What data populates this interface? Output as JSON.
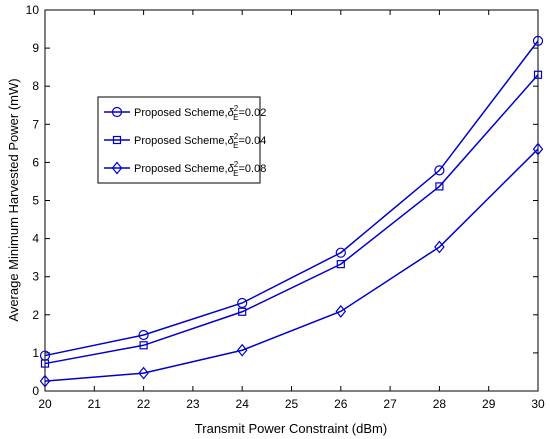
{
  "chart_data": {
    "type": "line",
    "xlabel": "Transmit Power Constraint (dBm)",
    "ylabel": "Average Minimum Harvested Power (mW)",
    "xlim": [
      20,
      30
    ],
    "ylim": [
      0,
      10
    ],
    "xticks": [
      "20",
      "21",
      "22",
      "23",
      "24",
      "25",
      "26",
      "27",
      "28",
      "29",
      "30"
    ],
    "yticks": [
      "0",
      "1",
      "2",
      "3",
      "4",
      "5",
      "6",
      "7",
      "8",
      "9",
      "10"
    ],
    "grid": false,
    "legend_position": "upper-left",
    "line_color": "#0000cc",
    "x": [
      20,
      22,
      24,
      26,
      28,
      30
    ],
    "series": [
      {
        "name_main": "Proposed Scheme,",
        "name_var": "δ",
        "name_sup": "2",
        "name_sub": "E",
        "name_tail": "=0.02",
        "marker": "circle",
        "values": [
          0.93,
          1.47,
          2.31,
          3.63,
          5.79,
          9.19
        ]
      },
      {
        "name_main": "Proposed Scheme,",
        "name_var": "δ",
        "name_sup": "2",
        "name_sub": "E",
        "name_tail": "=0.04",
        "marker": "square",
        "values": [
          0.72,
          1.2,
          2.08,
          3.33,
          5.37,
          8.3
        ]
      },
      {
        "name_main": "Proposed Scheme,",
        "name_var": "δ",
        "name_sup": "2",
        "name_sub": "E",
        "name_tail": "=0.08",
        "marker": "diamond",
        "values": [
          0.26,
          0.47,
          1.07,
          2.09,
          3.78,
          6.35
        ]
      }
    ]
  }
}
